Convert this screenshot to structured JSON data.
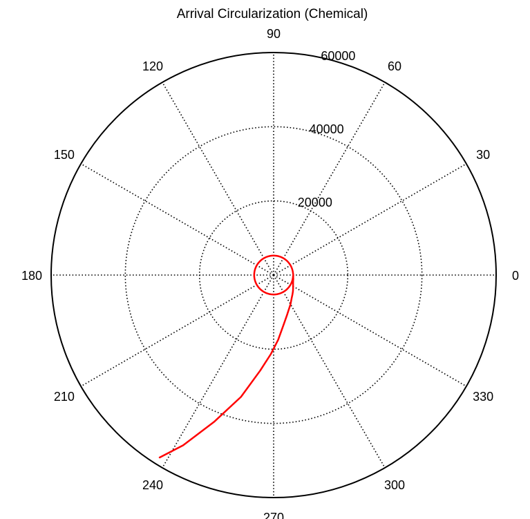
{
  "chart_data": {
    "type": "polar_line",
    "title": "Arrival Circularization (Chemical)",
    "angle_unit": "degrees",
    "angle_ticks": [
      0,
      30,
      60,
      90,
      120,
      150,
      180,
      210,
      240,
      270,
      300,
      330
    ],
    "angle_labels": [
      "0",
      "30",
      "60",
      "90",
      "120",
      "150",
      "180",
      "210",
      "240",
      "270",
      "300",
      "330"
    ],
    "rlim": [
      0,
      60000
    ],
    "r_ticks": [
      20000,
      40000,
      60000
    ],
    "r_labels": [
      "20000",
      "40000",
      "60000"
    ],
    "grid": true,
    "colors": {
      "axis": "#000000",
      "grid": "#000000",
      "series": "#ff0000"
    },
    "series": [
      {
        "theta_deg": [
          -122,
          -118,
          -112,
          -105,
          -98,
          -92,
          -86,
          -79,
          -72,
          -67,
          -60,
          -52,
          -46,
          -40,
          -35,
          -29,
          -23,
          -17,
          -11,
          -6,
          0,
          6,
          11,
          17,
          23,
          29,
          35,
          41,
          46,
          52,
          58,
          64,
          70,
          76,
          82,
          88,
          94,
          100,
          106,
          112,
          118,
          124,
          130,
          136,
          142,
          148,
          154,
          160,
          166,
          172,
          178,
          184,
          190,
          196,
          202,
          208,
          214,
          220,
          226,
          232,
          238,
          244,
          250,
          256,
          262,
          268,
          274,
          280,
          286,
          292,
          298,
          304,
          310,
          316,
          322,
          328,
          334,
          340,
          346,
          352,
          358
        ],
        "r": [
          58000,
          52000,
          42600,
          34000,
          26000,
          21300,
          17500,
          13800,
          11500,
          10300,
          9100,
          7900,
          7300,
          6800,
          6400,
          6000,
          5700,
          5500,
          5400,
          5300,
          5300,
          5250,
          5250,
          5250,
          5250,
          5250,
          5250,
          5250,
          5250,
          5250,
          5250,
          5250,
          5250,
          5250,
          5250,
          5250,
          5250,
          5250,
          5250,
          5250,
          5250,
          5250,
          5250,
          5250,
          5250,
          5250,
          5250,
          5250,
          5250,
          5250,
          5250,
          5250,
          5250,
          5250,
          5250,
          5250,
          5250,
          5250,
          5250,
          5250,
          5250,
          5250,
          5250,
          5250,
          5250,
          5250,
          5250,
          5250,
          5250,
          5250,
          5250,
          5250,
          5250,
          5250,
          5250,
          5250,
          5250,
          5250,
          5250,
          5250,
          5250
        ]
      }
    ]
  }
}
